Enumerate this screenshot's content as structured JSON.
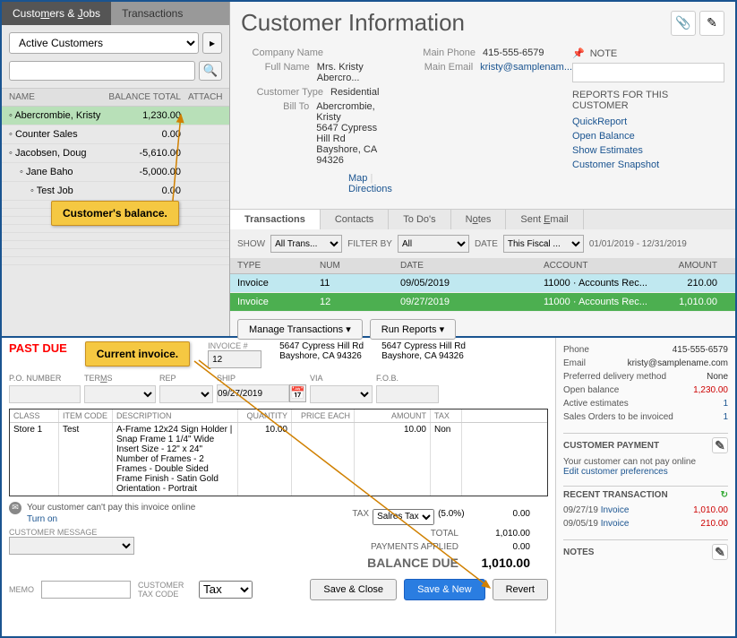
{
  "leftPanel": {
    "tabs": {
      "customers": "Customers & Jobs",
      "transactions": "Transactions"
    },
    "filter": "Active Customers",
    "headers": {
      "name": "NAME",
      "balance": "BALANCE TOTAL",
      "attach": "ATTACH"
    },
    "rows": [
      {
        "name": "Abercrombie, Kristy",
        "balance": "1,230.00",
        "selected": true,
        "indent": 0
      },
      {
        "name": "Counter Sales",
        "balance": "0.00",
        "indent": 0
      },
      {
        "name": "Jacobsen, Doug",
        "balance": "-5,610.00",
        "indent": 0
      },
      {
        "name": "Jane Baho",
        "balance": "-5,000.00",
        "indent": 1
      },
      {
        "name": "Test Job",
        "balance": "0.00",
        "indent": 2
      }
    ]
  },
  "customerInfo": {
    "title": "Customer Information",
    "noteLabel": "NOTE",
    "fields": {
      "companyLabel": "Company Name",
      "company": "",
      "fullNameLabel": "Full Name",
      "fullName": "Mrs. Kristy Abercro...",
      "custTypeLabel": "Customer Type",
      "custType": "Residential",
      "billToLabel": "Bill To",
      "billTo1": "Abercrombie, Kristy",
      "billTo2": "5647 Cypress Hill Rd",
      "billTo3": "Bayshore, CA 94326",
      "phoneLabel": "Main Phone",
      "phone": "415-555-6579",
      "emailLabel": "Main Email",
      "email": "kristy@samplenam..."
    },
    "mapLabel": "Map",
    "directionsLabel": "Directions",
    "reportsTitle": "REPORTS FOR THIS CUSTOMER",
    "reports": [
      "QuickReport",
      "Open Balance",
      "Show Estimates",
      "Customer Snapshot"
    ]
  },
  "transTabs": {
    "transactions": "Transactions",
    "contacts": "Contacts",
    "todos": "To Do's",
    "notes": "Notes",
    "sentEmail": "Sent Email"
  },
  "transFilter": {
    "showLabel": "SHOW",
    "showVal": "All Trans...",
    "filterByLabel": "FILTER BY",
    "filterByVal": "All",
    "dateLabel": "DATE",
    "dateVal": "This Fiscal ...",
    "dateRange": "01/01/2019 - 12/31/2019"
  },
  "transGrid": {
    "headers": {
      "type": "TYPE",
      "num": "NUM",
      "date": "DATE",
      "account": "ACCOUNT",
      "amount": "AMOUNT"
    },
    "rows": [
      {
        "type": "Invoice",
        "num": "11",
        "date": "09/05/2019",
        "account": "11000 · Accounts Rec...",
        "amount": "210.00",
        "highlight": true
      },
      {
        "type": "Invoice",
        "num": "12",
        "date": "09/27/2019",
        "account": "11000 · Accounts Rec...",
        "amount": "1,010.00",
        "selected": true
      }
    ],
    "manageBtn": "Manage Transactions",
    "reportsBtn": "Run Reports"
  },
  "callouts": {
    "balance": "Customer's balance.",
    "invoice": "Current invoice."
  },
  "invoice": {
    "pastDue": "PAST DUE",
    "invoiceNumLabel": "INVOICE #",
    "invoiceNum": "12",
    "addr1a": "5647 Cypress Hill Rd",
    "addr1b": "Bayshore, CA 94326",
    "addr2a": "5647 Cypress Hill Rd",
    "addr2b": "Bayshore, CA 94326",
    "cols": {
      "po": "P.O. NUMBER",
      "terms": "TERMS",
      "rep": "REP",
      "ship": "SHIP",
      "via": "VIA",
      "fob": "F.O.B."
    },
    "shipDate": "09/27/2019",
    "lineHeaders": {
      "class": "CLASS",
      "item": "ITEM CODE",
      "desc": "DESCRIPTION",
      "qty": "QUANTITY",
      "price": "PRICE EACH",
      "amount": "AMOUNT",
      "tax": "TAX"
    },
    "line": {
      "class": "Store 1",
      "item": "Test",
      "desc": "A-Frame 12x24 Sign Holder | Snap Frame 1 1/4\" Wide\nInsert Size - 12\" x 24\"\nNumber of Frames - 2 Frames - Double Sided\nFrame Finish - Satin Gold\nOrientation - Portrait",
      "qty": "10.00",
      "amount": "10.00",
      "tax": "Non"
    },
    "payNote": "Your customer can't pay this invoice online",
    "turnOn": "Turn on",
    "custMsgLabel": "CUSTOMER MESSAGE",
    "taxLabel": "TAX",
    "taxSel": "Salres Tax",
    "taxPct": "(5.0%)",
    "taxAmt": "0.00",
    "totalLabel": "TOTAL",
    "totalAmt": "1,010.00",
    "paymentsLabel": "PAYMENTS APPLIED",
    "paymentsAmt": "0.00",
    "balanceDueLabel": "BALANCE DUE",
    "balanceDueAmt": "1,010.00",
    "memoLabel": "MEMO",
    "custTaxLabel": "CUSTOMER TAX CODE",
    "custTaxVal": "Tax",
    "saveClose": "Save & Close",
    "saveNew": "Save & New",
    "revert": "Revert"
  },
  "sideInfo": {
    "phoneLabel": "Phone",
    "phone": "415-555-6579",
    "emailLabel": "Email",
    "email": "kristy@samplename.com",
    "deliveryLabel": "Preferred delivery method",
    "delivery": "None",
    "openBalLabel": "Open balance",
    "openBal": "1,230.00",
    "activeEstLabel": "Active estimates",
    "activeEst": "1",
    "salesOrdersLabel": "Sales Orders to be invoiced",
    "salesOrders": "1",
    "custPaymentTitle": "CUSTOMER PAYMENT",
    "custPaymentNote": "Your customer can not pay online",
    "editPrefs": "Edit customer preferences",
    "recentTitle": "RECENT TRANSACTION",
    "recent": [
      {
        "date": "09/27/19",
        "type": "Invoice",
        "amount": "1,010.00",
        "red": true
      },
      {
        "date": "09/05/19",
        "type": "Invoice",
        "amount": "210.00",
        "red": true
      }
    ],
    "notesTitle": "NOTES"
  }
}
